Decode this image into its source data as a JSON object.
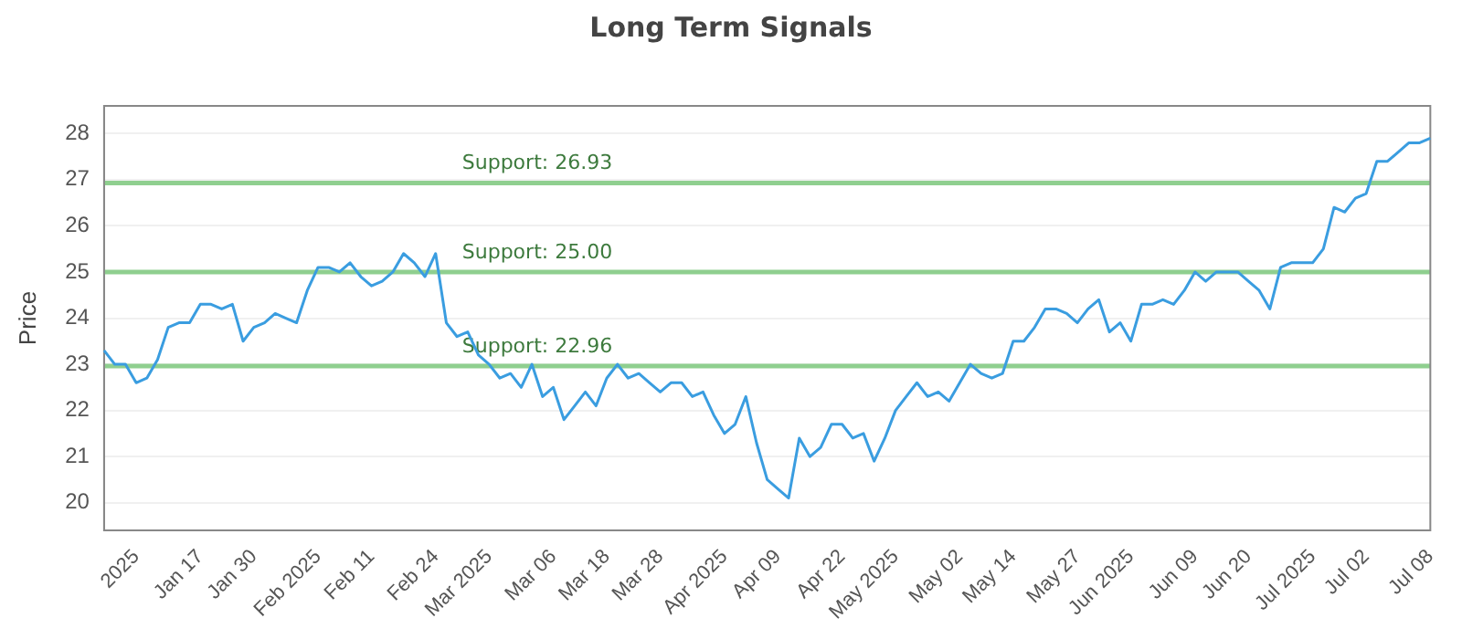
{
  "chart_data": {
    "type": "line",
    "title": "Long Term Signals",
    "ylabel": "Price",
    "categories": [
      null,
      null,
      null,
      "2025",
      null,
      null,
      null,
      null,
      null,
      "Jan 17",
      null,
      null,
      null,
      null,
      "Jan 30",
      null,
      null,
      null,
      null,
      null,
      "Feb 2025",
      null,
      null,
      null,
      null,
      "Feb 11",
      null,
      null,
      null,
      null,
      null,
      "Feb 24",
      null,
      null,
      null,
      null,
      "Mar 2025",
      null,
      null,
      null,
      null,
      null,
      "Mar 06",
      null,
      null,
      null,
      null,
      "Mar 18",
      null,
      null,
      null,
      null,
      "Mar 28",
      null,
      null,
      null,
      null,
      null,
      "Apr 2025",
      null,
      null,
      null,
      null,
      "Apr 09",
      null,
      null,
      null,
      null,
      null,
      "Apr 22",
      null,
      null,
      null,
      null,
      "May 2025",
      null,
      null,
      null,
      null,
      null,
      "May 02",
      null,
      null,
      null,
      null,
      "May 14",
      null,
      null,
      null,
      null,
      null,
      "May 27",
      null,
      null,
      null,
      null,
      "Jun 2025",
      null,
      null,
      null,
      null,
      null,
      "Jun 09",
      null,
      null,
      null,
      null,
      "Jun 20",
      null,
      null,
      null,
      null,
      null,
      "Jul 2025",
      null,
      null,
      null,
      null,
      "Jul 02",
      null,
      null,
      null,
      null,
      null,
      "Jul 08"
    ],
    "series": [
      {
        "color": "#3a9de0",
        "values": [
          23.3,
          23.0,
          23.0,
          22.6,
          22.7,
          23.1,
          23.8,
          23.9,
          23.9,
          24.3,
          24.3,
          24.2,
          24.3,
          23.5,
          23.8,
          23.9,
          24.1,
          24.0,
          23.9,
          24.6,
          25.1,
          25.1,
          25.0,
          25.2,
          24.9,
          24.7,
          24.8,
          25.0,
          25.4,
          25.2,
          24.9,
          25.4,
          23.9,
          23.6,
          23.7,
          23.2,
          23.0,
          22.7,
          22.8,
          22.5,
          23.0,
          22.3,
          22.5,
          21.8,
          22.1,
          22.4,
          22.1,
          22.7,
          23.0,
          22.7,
          22.8,
          22.6,
          22.4,
          22.6,
          22.6,
          22.3,
          22.4,
          21.9,
          21.5,
          21.7,
          22.3,
          21.3,
          20.5,
          20.3,
          20.1,
          21.4,
          21.0,
          21.2,
          21.7,
          21.7,
          21.4,
          21.5,
          20.9,
          21.4,
          22.0,
          22.3,
          22.6,
          22.3,
          22.4,
          22.2,
          22.6,
          23.0,
          22.8,
          22.7,
          22.8,
          23.5,
          23.5,
          23.8,
          24.2,
          24.2,
          24.1,
          23.9,
          24.2,
          24.4,
          23.7,
          23.9,
          23.5,
          24.3,
          24.3,
          24.4,
          24.3,
          24.6,
          25.0,
          24.8,
          25.0,
          25.0,
          25.0,
          24.8,
          24.6,
          24.2,
          25.1,
          25.2,
          25.2,
          25.2,
          25.5,
          26.4,
          26.3,
          26.6,
          26.7,
          27.4,
          27.4,
          27.6,
          27.8,
          27.8,
          27.9
        ]
      }
    ],
    "ylim": [
      19.4,
      28.6
    ],
    "yticks": [
      20,
      21,
      22,
      23,
      24,
      25,
      26,
      27,
      28
    ],
    "grid": "y",
    "marker": "none",
    "line_style": "solid",
    "legend": false,
    "ref_lines": [
      {
        "axis": "y",
        "value": 26.93,
        "label": "Support: 26.93",
        "color": "#8fcf8f"
      },
      {
        "axis": "y",
        "value": 25.0,
        "label": "Support: 25.00",
        "color": "#8fcf8f"
      },
      {
        "axis": "y",
        "value": 22.96,
        "label": "Support: 22.96",
        "color": "#8fcf8f"
      }
    ]
  }
}
